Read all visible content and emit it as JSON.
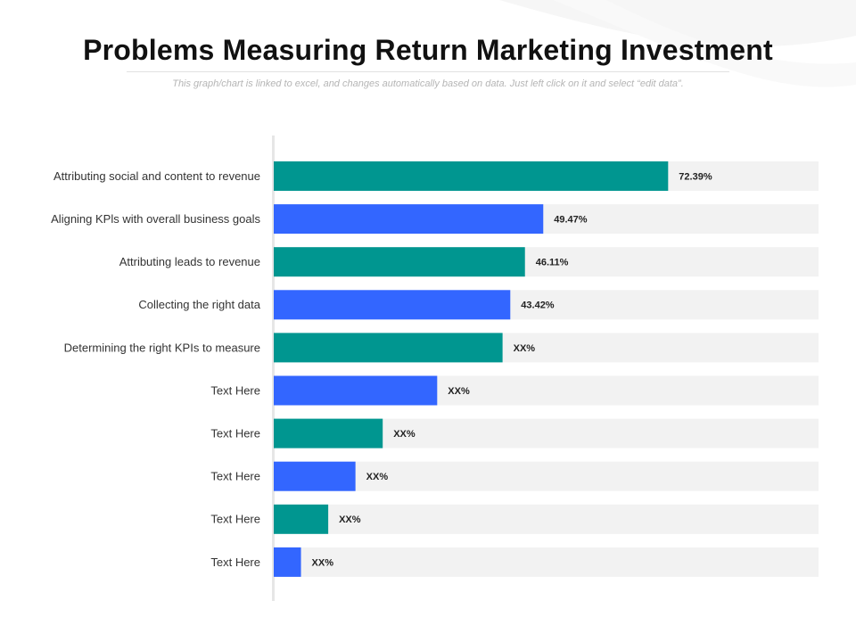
{
  "title": "Problems Measuring Return Marketing Investment",
  "subtitle": "This graph/chart is linked to excel, and changes automatically based on data. Just left click on it and select “edit data”.",
  "colors": {
    "teal": "#009690",
    "blue": "#3366ff",
    "track": "#f2f2f2",
    "axis": "#e6e6e6"
  },
  "chart_data": {
    "type": "bar",
    "orientation": "horizontal",
    "xlim": [
      0,
      100
    ],
    "grid": false,
    "categories": [
      "Attributing social and content to revenue",
      "Aligning KPls with overall business goals",
      "Attributing leads to revenue",
      "Collecting the right data",
      "Determining the right KPIs to measure",
      "Text Here",
      "Text Here",
      "Text Here",
      "Text Here",
      "Text Here"
    ],
    "values": [
      72.39,
      49.47,
      46.11,
      43.42,
      42,
      30,
      20,
      15,
      10,
      5
    ],
    "value_labels": [
      "72.39%",
      "49.47%",
      "46.11%",
      "43.42%",
      "XX%",
      "XX%",
      "XX%",
      "XX%",
      "XX%",
      "XX%"
    ],
    "bar_colors": [
      "teal",
      "blue",
      "teal",
      "blue",
      "teal",
      "blue",
      "teal",
      "blue",
      "teal",
      "blue"
    ]
  }
}
